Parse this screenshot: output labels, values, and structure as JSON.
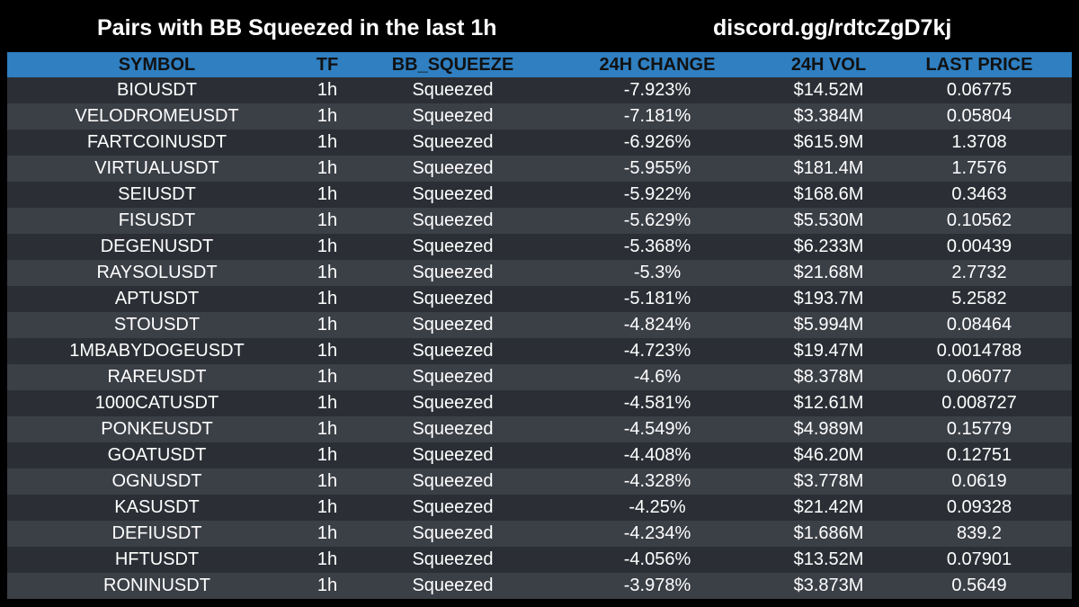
{
  "header": {
    "title": "Pairs with BB Squeezed in the last 1h",
    "discord": "discord.gg/rdtcZgD7kj"
  },
  "table": {
    "columns": [
      "SYMBOL",
      "TF",
      "BB_SQUEEZE",
      "24H CHANGE",
      "24H VOL",
      "LAST PRICE"
    ],
    "rows": [
      [
        "BIOUSDT",
        "1h",
        "Squeezed",
        "-7.923%",
        "$14.52M",
        "0.06775"
      ],
      [
        "VELODROMEUSDT",
        "1h",
        "Squeezed",
        "-7.181%",
        "$3.384M",
        "0.05804"
      ],
      [
        "FARTCOINUSDT",
        "1h",
        "Squeezed",
        "-6.926%",
        "$615.9M",
        "1.3708"
      ],
      [
        "VIRTUALUSDT",
        "1h",
        "Squeezed",
        "-5.955%",
        "$181.4M",
        "1.7576"
      ],
      [
        "SEIUSDT",
        "1h",
        "Squeezed",
        "-5.922%",
        "$168.6M",
        "0.3463"
      ],
      [
        "FISUSDT",
        "1h",
        "Squeezed",
        "-5.629%",
        "$5.530M",
        "0.10562"
      ],
      [
        "DEGENUSDT",
        "1h",
        "Squeezed",
        "-5.368%",
        "$6.233M",
        "0.00439"
      ],
      [
        "RAYSOLUSDT",
        "1h",
        "Squeezed",
        "-5.3%",
        "$21.68M",
        "2.7732"
      ],
      [
        "APTUSDT",
        "1h",
        "Squeezed",
        "-5.181%",
        "$193.7M",
        "5.2582"
      ],
      [
        "STOUSDT",
        "1h",
        "Squeezed",
        "-4.824%",
        "$5.994M",
        "0.08464"
      ],
      [
        "1MBABYDOGEUSDT",
        "1h",
        "Squeezed",
        "-4.723%",
        "$19.47M",
        "0.0014788"
      ],
      [
        "RAREUSDT",
        "1h",
        "Squeezed",
        "-4.6%",
        "$8.378M",
        "0.06077"
      ],
      [
        "1000CATUSDT",
        "1h",
        "Squeezed",
        "-4.581%",
        "$12.61M",
        "0.008727"
      ],
      [
        "PONKEUSDT",
        "1h",
        "Squeezed",
        "-4.549%",
        "$4.989M",
        "0.15779"
      ],
      [
        "GOATUSDT",
        "1h",
        "Squeezed",
        "-4.408%",
        "$46.20M",
        "0.12751"
      ],
      [
        "OGNUSDT",
        "1h",
        "Squeezed",
        "-4.328%",
        "$3.778M",
        "0.0619"
      ],
      [
        "KASUSDT",
        "1h",
        "Squeezed",
        "-4.25%",
        "$21.42M",
        "0.09328"
      ],
      [
        "DEFIUSDT",
        "1h",
        "Squeezed",
        "-4.234%",
        "$1.686M",
        "839.2"
      ],
      [
        "HFTUSDT",
        "1h",
        "Squeezed",
        "-4.056%",
        "$13.52M",
        "0.07901"
      ],
      [
        "RONINUSDT",
        "1h",
        "Squeezed",
        "-3.978%",
        "$3.873M",
        "0.5649"
      ]
    ]
  },
  "colors": {
    "background": "#000000",
    "header_row": "#2f7fc1",
    "row_dark": "#2b2f35",
    "row_light": "#3b3f46",
    "text": "#ffffff"
  }
}
